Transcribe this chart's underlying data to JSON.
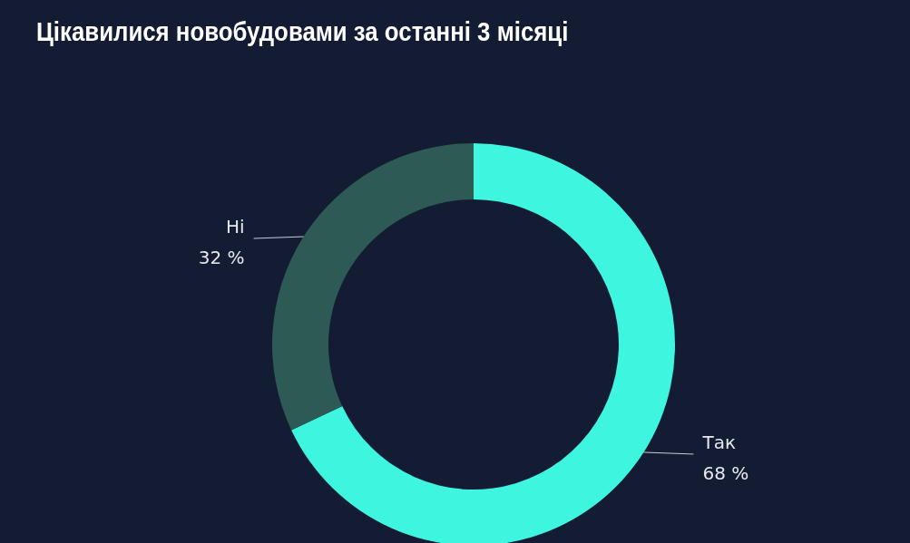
{
  "chart_data": {
    "type": "donut",
    "title": "Цікавилися новобудовами за останні 3 місяці",
    "categories": [
      "Так",
      "Ні"
    ],
    "values": [
      68,
      32
    ],
    "colors": [
      "#3ef5e0",
      "#2d5a55"
    ],
    "value_labels": [
      "68 %",
      "32 %"
    ]
  }
}
